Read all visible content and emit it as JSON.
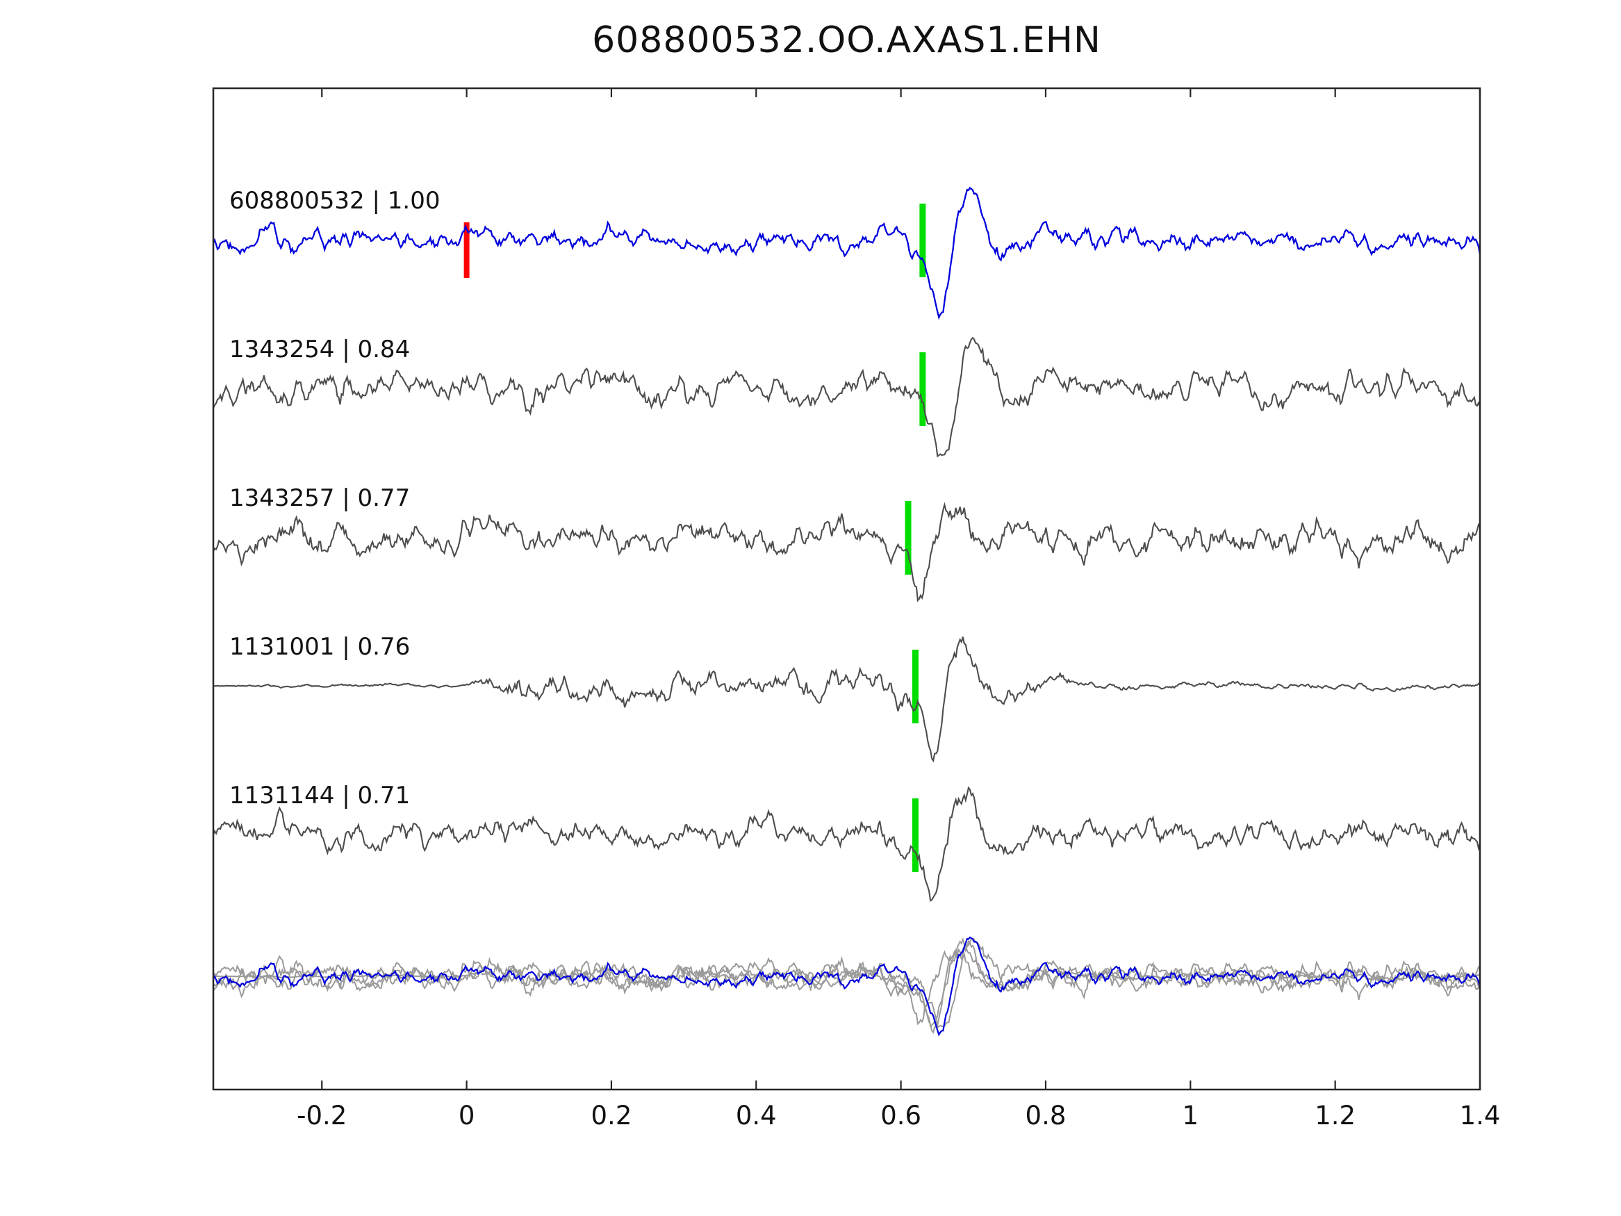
{
  "chart_data": {
    "type": "line",
    "title": "608800532.OO.AXAS1.EHN",
    "xlabel": "",
    "ylabel": "",
    "xlim": [
      -0.35,
      1.4
    ],
    "x_ticks": [
      -0.2,
      0,
      0.2,
      0.4,
      0.6,
      0.8,
      1,
      1.2,
      1.4
    ],
    "x_tick_labels": [
      "-0.2",
      "0",
      "0.2",
      "0.4",
      "0.6",
      "0.8",
      "1",
      "1.2",
      "1.4"
    ],
    "grid": false,
    "legend": "none",
    "colors": {
      "template_trace": "#0000dd",
      "match_trace": "#4d4d4d",
      "overlay_match": "#9a9a9a",
      "pick_marker": "#00dd00",
      "origin_marker": "#ff0000",
      "axis": "#262626",
      "background": "#ffffff"
    },
    "traces": [
      {
        "event_id": "608800532",
        "label": "608800532 | 1.00",
        "correlation": 1.0,
        "role": "template",
        "color_key": "template_trace",
        "pick_x": 0.63,
        "origin_x": 0.0,
        "synthesis": {
          "seed": 7,
          "noise_amp": 25,
          "event_amp": 105,
          "event_x": 0.655,
          "envelope": [
            [
              -0.35,
              1
            ],
            [
              1.4,
              1
            ]
          ]
        }
      },
      {
        "event_id": "1343254",
        "label": "1343254 | 0.84",
        "correlation": 0.84,
        "role": "match",
        "color_key": "match_trace",
        "pick_x": 0.63,
        "origin_x": null,
        "synthesis": {
          "seed": 21,
          "noise_amp": 36,
          "event_amp": 98,
          "event_x": 0.66,
          "envelope": [
            [
              -0.35,
              1
            ],
            [
              1.4,
              1
            ]
          ]
        }
      },
      {
        "event_id": "1343257",
        "label": "1343257 | 0.77",
        "correlation": 0.77,
        "role": "match",
        "color_key": "match_trace",
        "pick_x": 0.61,
        "origin_x": null,
        "synthesis": {
          "seed": 33,
          "noise_amp": 45,
          "event_amp": 72,
          "event_x": 0.63,
          "envelope": [
            [
              -0.35,
              1
            ],
            [
              1.4,
              1
            ]
          ]
        }
      },
      {
        "event_id": "1131001",
        "label": "1131001 | 0.76",
        "correlation": 0.76,
        "role": "match",
        "color_key": "match_trace",
        "pick_x": 0.62,
        "origin_x": null,
        "synthesis": {
          "seed": 47,
          "noise_amp": 34,
          "event_amp": 105,
          "event_x": 0.645,
          "envelope": [
            [
              -0.35,
              0.1
            ],
            [
              0.0,
              0.12
            ],
            [
              0.06,
              1.0
            ],
            [
              0.7,
              1.0
            ],
            [
              0.88,
              0.3
            ],
            [
              1.4,
              0.22
            ]
          ]
        }
      },
      {
        "event_id": "1131144",
        "label": "1131144 | 0.71",
        "correlation": 0.71,
        "role": "match",
        "color_key": "match_trace",
        "pick_x": 0.62,
        "origin_x": null,
        "synthesis": {
          "seed": 59,
          "noise_amp": 38,
          "event_amp": 90,
          "event_x": 0.645,
          "envelope": [
            [
              -0.35,
              1
            ],
            [
              1.4,
              1
            ]
          ]
        }
      }
    ],
    "overlay": {
      "description": "all traces superimposed, matches in gray, template in blue on top",
      "scale": 0.75
    }
  }
}
